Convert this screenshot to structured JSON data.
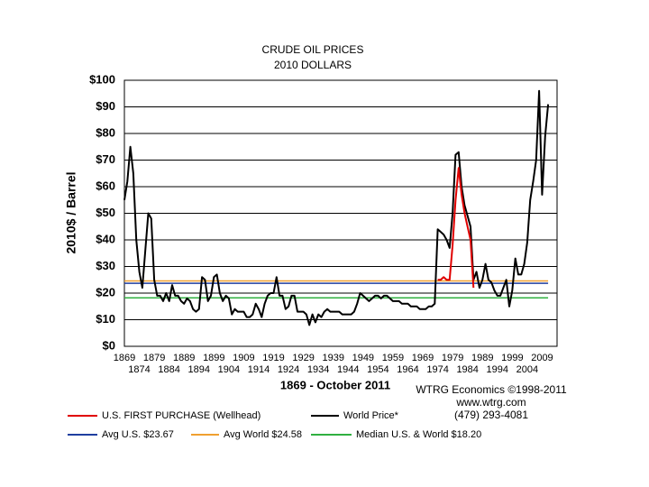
{
  "chart_data": {
    "type": "line",
    "title": "CRUDE OIL PRICES",
    "subtitle": "2010 DOLLARS",
    "ylabel": "2010$ / Barrel",
    "xlabel": "1869 - October 2011",
    "annotations": [
      "WTRG Economics  ©1998-2011",
      "www.wtrg.com",
      "(479) 293-4081"
    ],
    "xlim": [
      1869,
      2014
    ],
    "ylim": [
      0,
      100
    ],
    "xticks": [
      1869,
      1874,
      1879,
      1884,
      1889,
      1894,
      1899,
      1904,
      1909,
      1914,
      1919,
      1924,
      1929,
      1934,
      1939,
      1944,
      1949,
      1954,
      1959,
      1964,
      1969,
      1974,
      1979,
      1984,
      1989,
      1994,
      1999,
      2004,
      2009
    ],
    "yticks": [
      {
        "value": 0,
        "label": "$0"
      },
      {
        "value": 10,
        "label": "$10"
      },
      {
        "value": 20,
        "label": "$20"
      },
      {
        "value": 30,
        "label": "$30"
      },
      {
        "value": 40,
        "label": "$40"
      },
      {
        "value": 50,
        "label": "$50"
      },
      {
        "value": 60,
        "label": "$60"
      },
      {
        "value": 70,
        "label": "$70"
      },
      {
        "value": 80,
        "label": "$80"
      },
      {
        "value": 90,
        "label": "$90"
      },
      {
        "value": 100,
        "label": "$100"
      }
    ],
    "grid": true,
    "series": [
      {
        "name": "World Price*",
        "color": "#000000",
        "x": [
          1869,
          1870,
          1871,
          1872,
          1873,
          1874,
          1875,
          1876,
          1877,
          1878,
          1879,
          1880,
          1881,
          1882,
          1883,
          1884,
          1885,
          1886,
          1887,
          1888,
          1889,
          1890,
          1891,
          1892,
          1893,
          1894,
          1895,
          1896,
          1897,
          1898,
          1899,
          1900,
          1901,
          1902,
          1903,
          1904,
          1905,
          1906,
          1907,
          1908,
          1909,
          1910,
          1911,
          1912,
          1913,
          1914,
          1915,
          1916,
          1917,
          1918,
          1919,
          1920,
          1921,
          1922,
          1923,
          1924,
          1925,
          1926,
          1927,
          1928,
          1929,
          1930,
          1931,
          1932,
          1933,
          1934,
          1935,
          1936,
          1937,
          1938,
          1939,
          1940,
          1941,
          1942,
          1943,
          1944,
          1945,
          1946,
          1947,
          1948,
          1949,
          1950,
          1951,
          1952,
          1953,
          1954,
          1955,
          1956,
          1957,
          1958,
          1959,
          1960,
          1961,
          1962,
          1963,
          1964,
          1965,
          1966,
          1967,
          1968,
          1969,
          1970,
          1971,
          1972,
          1973,
          1974,
          1975,
          1976,
          1977,
          1978,
          1979,
          1980,
          1981,
          1982,
          1983,
          1984,
          1985,
          1986,
          1987,
          1988,
          1989,
          1990,
          1991,
          1992,
          1993,
          1994,
          1995,
          1996,
          1997,
          1998,
          1999,
          2000,
          2001,
          2002,
          2003,
          2004,
          2005,
          2006,
          2007,
          2008,
          2009,
          2010,
          2011
        ],
        "values": [
          55,
          62,
          75,
          65,
          40,
          28,
          22,
          36,
          50,
          48,
          25,
          19,
          19,
          17,
          20,
          17,
          23,
          19,
          19,
          17,
          16,
          18,
          17,
          14,
          13,
          14,
          26,
          25,
          17,
          19,
          26,
          27,
          20,
          17,
          19,
          18,
          12,
          14,
          13,
          13,
          13,
          11,
          11,
          12,
          16,
          14,
          11,
          16,
          19,
          20,
          20,
          26,
          19,
          19,
          14,
          15,
          19,
          19,
          13,
          13,
          13,
          12,
          8,
          12,
          9,
          12,
          11,
          13,
          14,
          13,
          13,
          13,
          13,
          12,
          12,
          12,
          12,
          13,
          16,
          20,
          19,
          18,
          17,
          18,
          19,
          19,
          18,
          19,
          19,
          18,
          17,
          17,
          17,
          16,
          16,
          16,
          15,
          15,
          15,
          14,
          14,
          14,
          15,
          15,
          16,
          44,
          43,
          42,
          40,
          37,
          50,
          72,
          73,
          60,
          53,
          49,
          45,
          25,
          28,
          22,
          25,
          31,
          25,
          24,
          21,
          19,
          19,
          22,
          25,
          15,
          21,
          33,
          27,
          27,
          31,
          39,
          55,
          62,
          70,
          96,
          57,
          79,
          91
        ]
      },
      {
        "name": "U.S. FIRST PURCHASE (Wellhead)",
        "color": "#e00000",
        "x": [
          1974,
          1975,
          1976,
          1977,
          1978,
          1979,
          1980,
          1981,
          1982,
          1983,
          1984,
          1985,
          1986
        ],
        "values": [
          25,
          25,
          26,
          25,
          25,
          38,
          55,
          67,
          57,
          50,
          45,
          40,
          22
        ]
      }
    ],
    "reference_lines": [
      {
        "name": "Avg U.S. $23.67",
        "value": 23.67,
        "color": "#1f3fa0"
      },
      {
        "name": "Avg World $24.58",
        "value": 24.58,
        "color": "#f0a030"
      },
      {
        "name": "Median U.S. & World  $18.20",
        "value": 18.2,
        "color": "#30b040"
      }
    ]
  }
}
